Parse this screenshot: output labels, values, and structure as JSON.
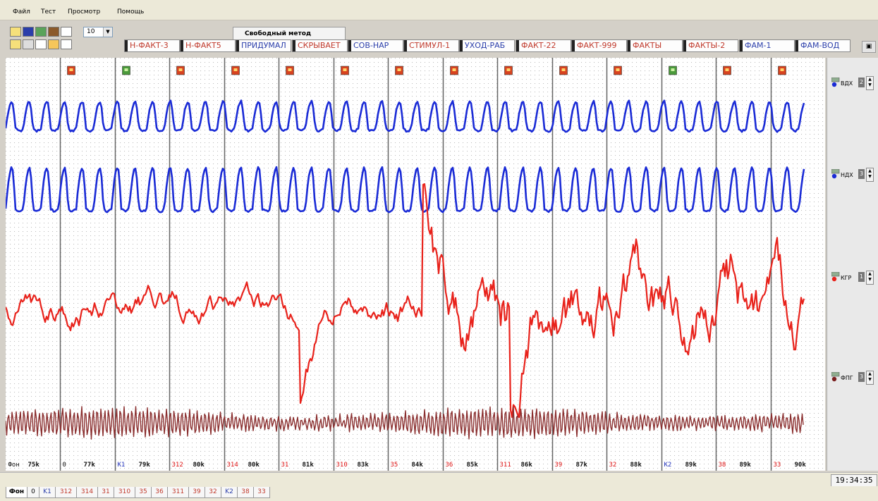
{
  "menu": [
    "Файл",
    "Тест",
    "Просмотр",
    "Помощь"
  ],
  "toolbar": {
    "zoom_value": "10"
  },
  "method_tab": "Свободный метод",
  "question_tabs": [
    {
      "label": "Н-ФАКТ-3",
      "color": "red"
    },
    {
      "label": "Н-ФАКТ5",
      "color": "red"
    },
    {
      "label": "ПРИДУМАЛ",
      "color": "blue"
    },
    {
      "label": "СКРЫВАЕТ",
      "color": "red"
    },
    {
      "label": "СОВ-НАР",
      "color": "blue"
    },
    {
      "label": "СТИМУЛ-1",
      "color": "red"
    },
    {
      "label": "УХОД-РАБ",
      "color": "blue"
    },
    {
      "label": "ФАКТ-22",
      "color": "red"
    },
    {
      "label": "ФАКТ-999",
      "color": "red"
    },
    {
      "label": "ФАКТЫ",
      "color": "red"
    },
    {
      "label": "ФАКТЫ-2",
      "color": "red"
    },
    {
      "label": "ФАМ-1",
      "color": "blue"
    },
    {
      "label": "ФАМ-ВОД",
      "color": "blue"
    }
  ],
  "channels": [
    {
      "label": "ВДХ",
      "value": "2",
      "color": "#1a2bd6"
    },
    {
      "label": "НДХ",
      "value": "3",
      "color": "#1a2bd6"
    },
    {
      "label": "КГР",
      "value": "1",
      "color": "#e8221b"
    },
    {
      "label": "ФПГ",
      "value": "3",
      "color": "#7a1f1f"
    }
  ],
  "markers": [
    {
      "num": "Фон",
      "val": "75k",
      "color": "black",
      "flag": "none"
    },
    {
      "num": "0",
      "val": "77k",
      "color": "black",
      "flag": "red"
    },
    {
      "num": "K1",
      "val": "79k",
      "color": "blue",
      "flag": "green"
    },
    {
      "num": "312",
      "val": "80k",
      "color": "red",
      "flag": "red"
    },
    {
      "num": "314",
      "val": "80k",
      "color": "red",
      "flag": "red"
    },
    {
      "num": "31",
      "val": "81k",
      "color": "red",
      "flag": "red"
    },
    {
      "num": "310",
      "val": "83k",
      "color": "red",
      "flag": "red"
    },
    {
      "num": "35",
      "val": "84k",
      "color": "red",
      "flag": "red"
    },
    {
      "num": "36",
      "val": "85k",
      "color": "red",
      "flag": "red"
    },
    {
      "num": "311",
      "val": "86k",
      "color": "red",
      "flag": "red"
    },
    {
      "num": "39",
      "val": "87k",
      "color": "red",
      "flag": "red"
    },
    {
      "num": "32",
      "val": "88k",
      "color": "red",
      "flag": "red"
    },
    {
      "num": "K2",
      "val": "89k",
      "color": "blue",
      "flag": "green"
    },
    {
      "num": "38",
      "val": "89k",
      "color": "red",
      "flag": "red"
    },
    {
      "num": "33",
      "val": "90k",
      "color": "red",
      "flag": "red"
    }
  ],
  "clock": "19:34:35",
  "bottom_tabs": [
    {
      "label": "Фон",
      "color": "black",
      "active": true
    },
    {
      "label": "0",
      "color": "black"
    },
    {
      "label": "K1",
      "color": "blue"
    },
    {
      "label": "312",
      "color": "red"
    },
    {
      "label": "314",
      "color": "red"
    },
    {
      "label": "31",
      "color": "red"
    },
    {
      "label": "310",
      "color": "red"
    },
    {
      "label": "35",
      "color": "red"
    },
    {
      "label": "36",
      "color": "red"
    },
    {
      "label": "311",
      "color": "red"
    },
    {
      "label": "39",
      "color": "red"
    },
    {
      "label": "32",
      "color": "red"
    },
    {
      "label": "K2",
      "color": "blue"
    },
    {
      "label": "38",
      "color": "red"
    },
    {
      "label": "33",
      "color": "red"
    }
  ]
}
